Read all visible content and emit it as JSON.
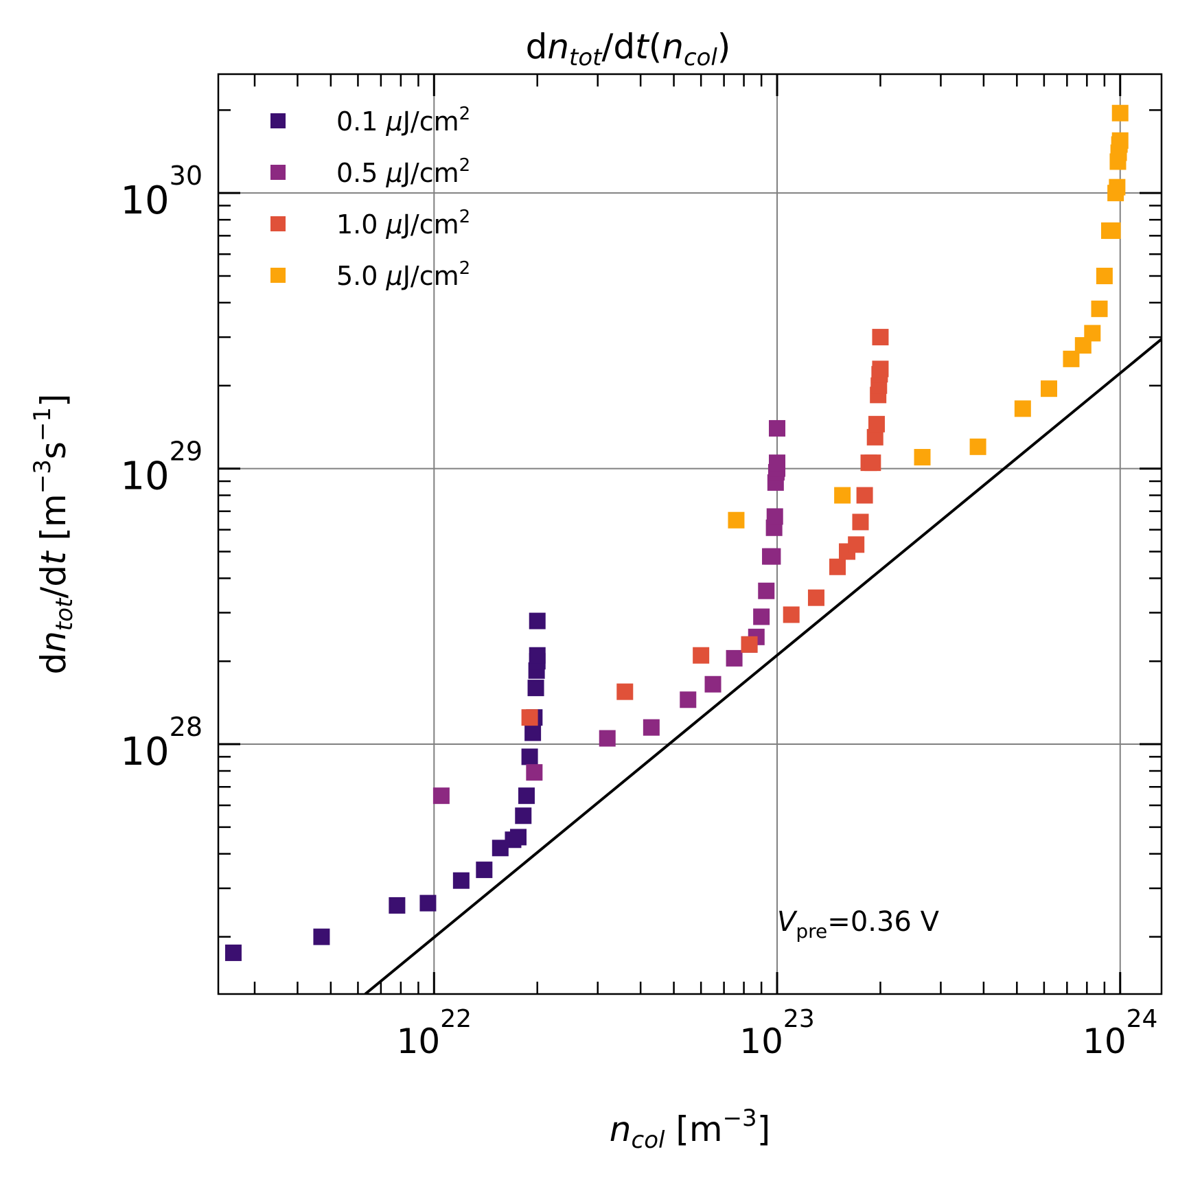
{
  "chart_data": {
    "type": "scatter",
    "title": {
      "prefix": "d",
      "n": "n",
      "n_sub": "tot",
      "mid": "/d",
      "t": "t",
      "open": "(",
      "n2": "n",
      "n2_sub": "col",
      "close": ")"
    },
    "xlabel": {
      "n": "n",
      "n_sub": "col",
      "bracket_open": " [m",
      "exp": "−3",
      "bracket_close": "]"
    },
    "ylabel": {
      "prefix": "d",
      "n": "n",
      "n_sub": "tot",
      "mid": "/d",
      "t": "t",
      "bracket_open": " [m",
      "exp1": "−3",
      "s": "s",
      "exp2": "−1",
      "bracket_close": "]"
    },
    "xscale": "log",
    "yscale": "log",
    "xlim": [
      2.35e+21,
      1.32e+24
    ],
    "ylim": [
      1.24e+27,
      2.7e+30
    ],
    "grid": true,
    "legend_position": "top-left",
    "x_ticks": [
      {
        "value": 1e+22,
        "base": "10",
        "exp": "22"
      },
      {
        "value": 1e+23,
        "base": "10",
        "exp": "23"
      },
      {
        "value": 1e+24,
        "base": "10",
        "exp": "24"
      }
    ],
    "y_ticks": [
      {
        "value": 1e+28,
        "base": "10",
        "exp": "28"
      },
      {
        "value": 1e+29,
        "base": "10",
        "exp": "29"
      },
      {
        "value": 1e+30,
        "base": "10",
        "exp": "30"
      }
    ],
    "annotation": {
      "v": "V",
      "sub": "pre",
      "rest": "=0.36 V",
      "x": 1e+23,
      "y": 2.1e+27
    },
    "reference_line": {
      "x": [
        6.3e+21,
        1.32e+24
      ],
      "y": [
        1.24e+27,
        2.95e+29
      ],
      "color": "#000000"
    },
    "series": [
      {
        "name_value": "0.1",
        "name_unit_mu": "μ",
        "name_unit": "J/cm",
        "name_exp": "2",
        "color": "#3b0f70",
        "x": [
          2.6e+21,
          4.7e+21,
          7.8e+21,
          9.6e+21,
          1.2e+22,
          1.4e+22,
          1.56e+22,
          1.7e+22,
          1.76e+22,
          1.82e+22,
          1.86e+22,
          1.9e+22,
          1.94e+22,
          1.96e+22,
          1.98e+22,
          1.99e+22,
          2e+22,
          2e+22,
          2e+22
        ],
        "y": [
          1.75e+27,
          2e+27,
          2.6e+27,
          2.65e+27,
          3.2e+27,
          3.5e+27,
          4.2e+27,
          4.5e+27,
          4.6e+27,
          5.5e+27,
          6.5e+27,
          9e+27,
          1.1e+28,
          1.25e+28,
          1.6e+28,
          1.85e+28,
          2e+28,
          2.1e+28,
          2.8e+28
        ]
      },
      {
        "name_value": "0.5",
        "name_unit_mu": "μ",
        "name_unit": "J/cm",
        "name_exp": "2",
        "color": "#8c2981",
        "x": [
          1.05e+22,
          1.96e+22,
          3.2e+22,
          4.3e+22,
          5.5e+22,
          6.5e+22,
          7.5e+22,
          8.3e+22,
          8.7e+22,
          9e+22,
          9.3e+22,
          9.55e+22,
          9.7e+22,
          9.8e+22,
          9.85e+22,
          9.9e+22,
          9.95e+22,
          1e+23,
          1e+23,
          1e+23
        ],
        "y": [
          6.5e+27,
          7.9e+27,
          1.05e+28,
          1.15e+28,
          1.45e+28,
          1.65e+28,
          2.05e+28,
          2.3e+28,
          2.45e+28,
          2.9e+28,
          3.6e+28,
          4.8e+28,
          4.8e+28,
          6.1e+28,
          6.7e+28,
          8.9e+28,
          9.7e+28,
          1e+29,
          1.05e+29,
          1.4e+29
        ]
      },
      {
        "name_value": "1.0",
        "name_unit_mu": "μ",
        "name_unit": "J/cm",
        "name_exp": "2",
        "color": "#e05139",
        "x": [
          1.9e+22,
          3.6e+22,
          6e+22,
          8.3e+22,
          1.1e+23,
          1.3e+23,
          1.5e+23,
          1.6e+23,
          1.7e+23,
          1.75e+23,
          1.8e+23,
          1.85e+23,
          1.9e+23,
          1.93e+23,
          1.95e+23,
          1.97e+23,
          1.98e+23,
          1.99e+23,
          2e+23,
          2e+23
        ],
        "y": [
          1.25e+28,
          1.55e+28,
          2.1e+28,
          2.3e+28,
          2.95e+28,
          3.4e+28,
          4.4e+28,
          5e+28,
          5.3e+28,
          6.4e+28,
          8e+28,
          1.05e+29,
          1.05e+29,
          1.3e+29,
          1.45e+29,
          1.85e+29,
          2e+29,
          2.2e+29,
          2.3e+29,
          3e+29
        ]
      },
      {
        "name_value": "5.0",
        "name_unit_mu": "μ",
        "name_unit": "J/cm",
        "name_exp": "2",
        "color": "#fca50a",
        "x": [
          7.6e+22,
          1.55e+23,
          2.65e+23,
          3.85e+23,
          5.2e+23,
          6.2e+23,
          7.2e+23,
          7.8e+23,
          8.3e+23,
          8.7e+23,
          9e+23,
          9.3e+23,
          9.5e+23,
          9.7e+23,
          9.8e+23,
          9.85e+23,
          9.9e+23,
          9.95e+23,
          1e+24,
          1e+24
        ],
        "y": [
          6.5e+28,
          8e+28,
          1.1e+29,
          1.2e+29,
          1.65e+29,
          1.95e+29,
          2.5e+29,
          2.8e+29,
          3.1e+29,
          3.8e+29,
          5e+29,
          7.3e+29,
          7.3e+29,
          1e+30,
          1.05e+30,
          1.3e+30,
          1.4e+30,
          1.5e+30,
          1.55e+30,
          1.95e+30
        ]
      }
    ]
  }
}
